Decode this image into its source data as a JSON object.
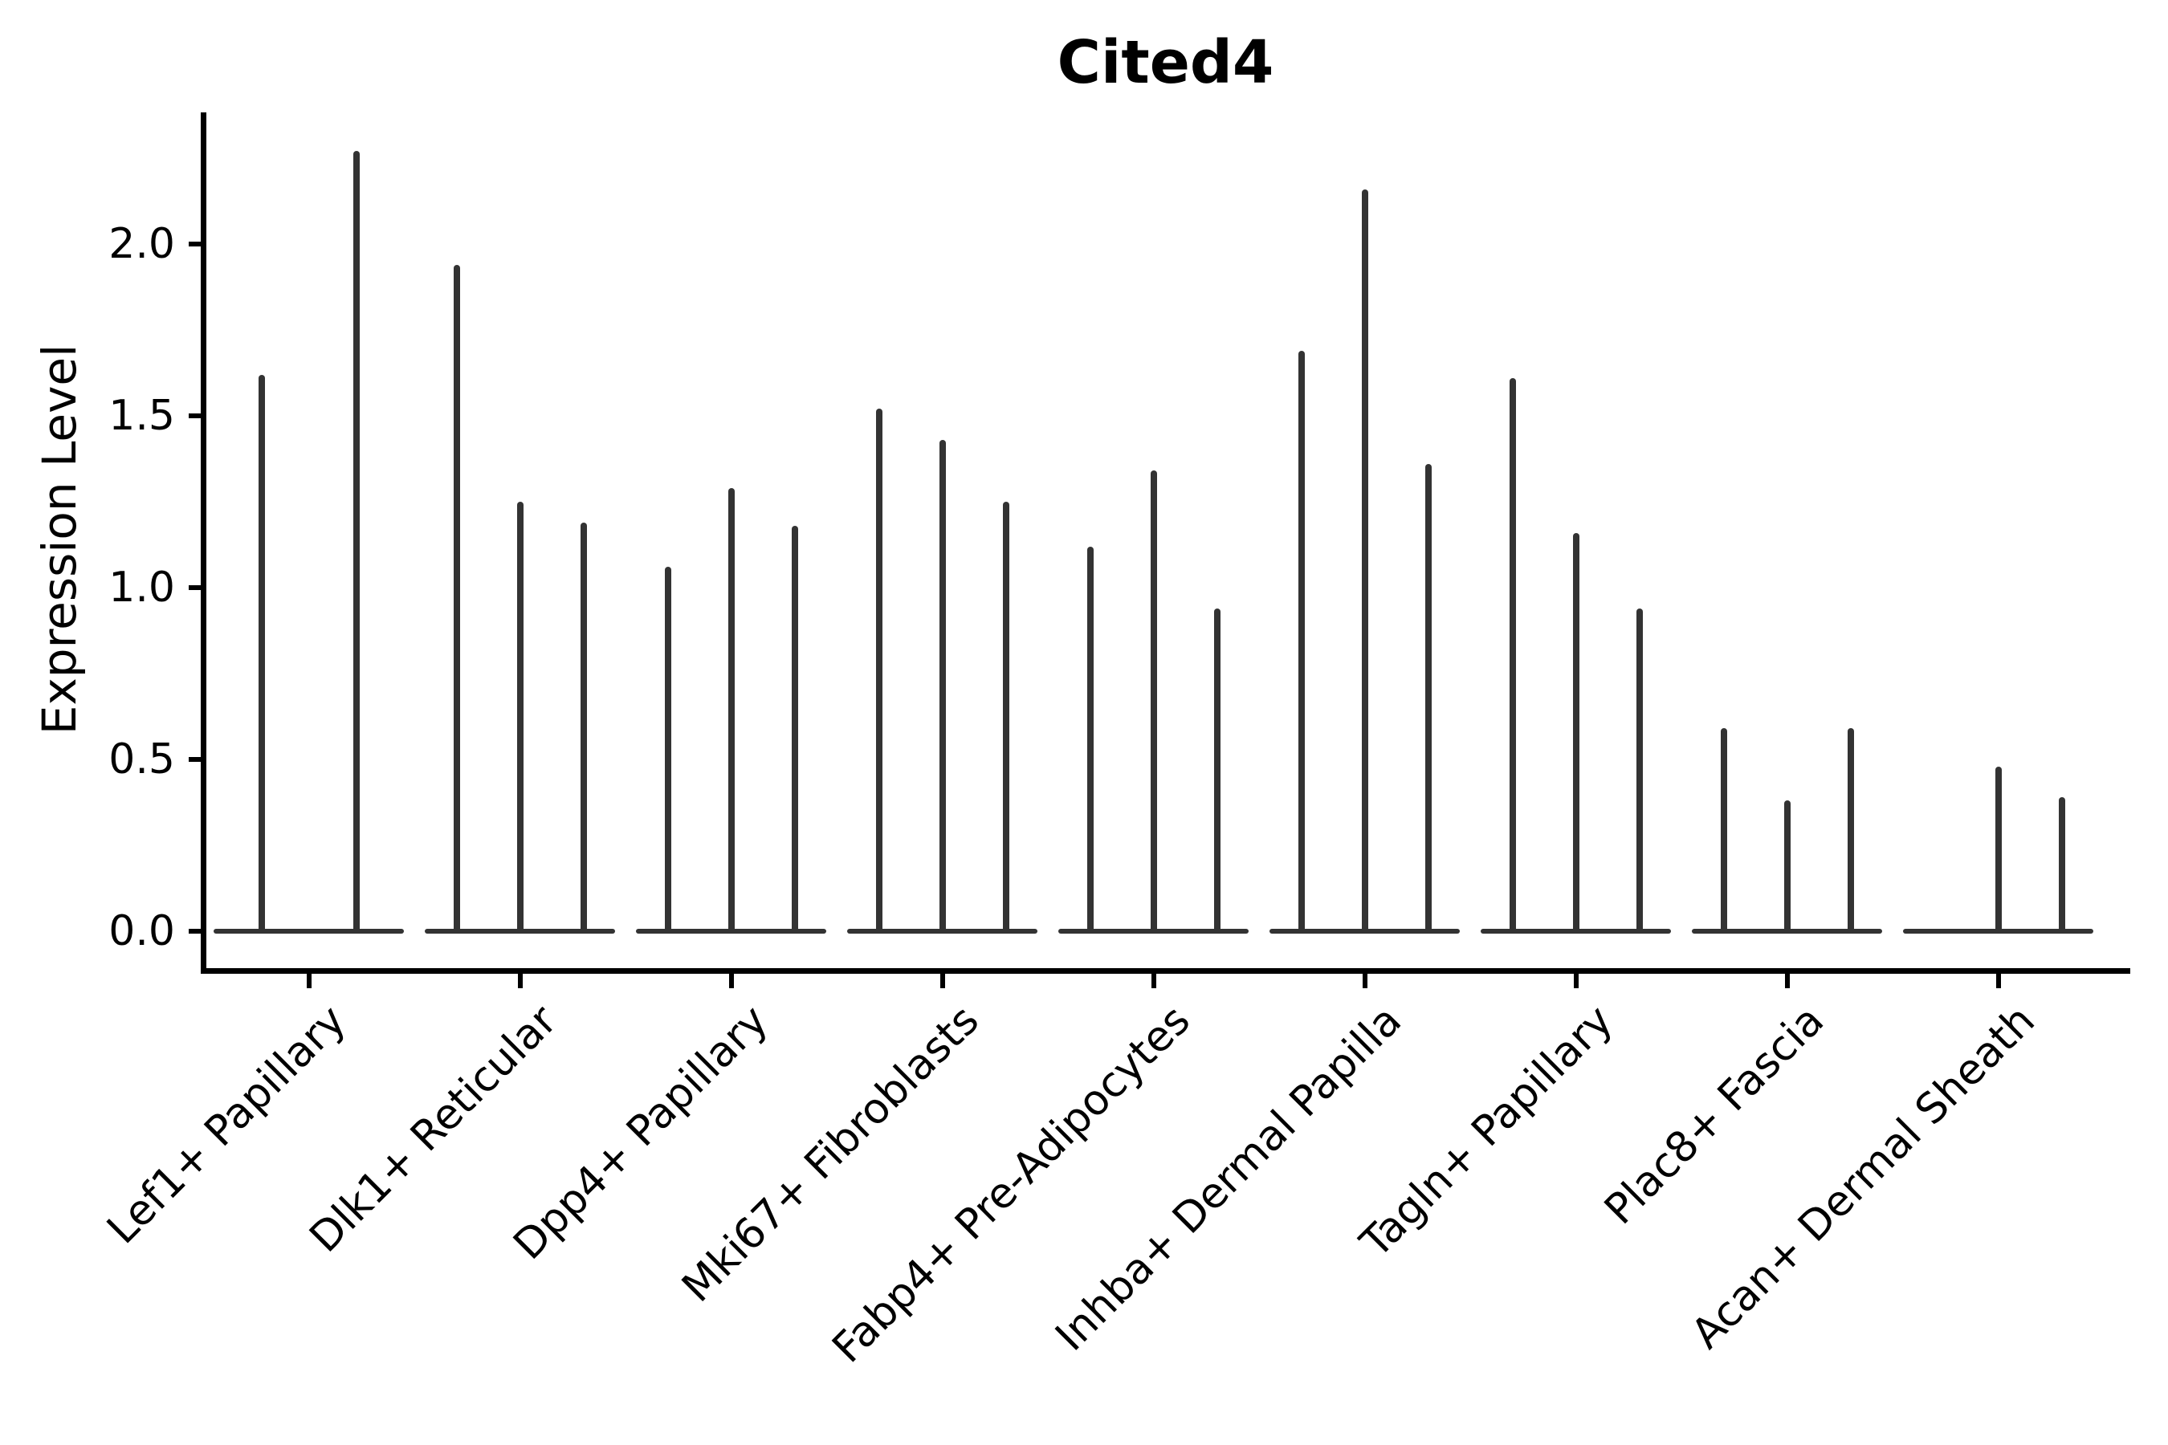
{
  "chart_data": {
    "type": "violin",
    "title": "Cited4",
    "ylabel": "Expression Level",
    "xlabel": "",
    "ylim": [
      0,
      2.35
    ],
    "yticks": [
      0.0,
      0.5,
      1.0,
      1.5,
      2.0
    ],
    "ytick_labels": [
      "0.0",
      "0.5",
      "1.0",
      "1.5",
      "2.0"
    ],
    "grid": false,
    "legend": "none",
    "style_note": "Seurat-style stacked violin plot; each cell-type group shows 2-3 very thin violins (spikes) with flat bases at expression 0",
    "categories": [
      "Lef1+ Papillary",
      "Dlk1+ Reticular",
      "Dpp4+ Papillary",
      "Mki67+ Fibroblasts",
      "Fabp4+ Pre-Adipocytes",
      "Inhba+ Dermal Papilla",
      "Tagln+ Papillary",
      "Plac8+ Fascia",
      "Acan+ Dermal Sheath"
    ],
    "series": [
      {
        "category": "Lef1+ Papillary",
        "violin_max_values": [
          1.62,
          2.27
        ]
      },
      {
        "category": "Dlk1+ Reticular",
        "violin_max_values": [
          1.94,
          1.25,
          1.19
        ]
      },
      {
        "category": "Dpp4+ Papillary",
        "violin_max_values": [
          1.06,
          1.29,
          1.18
        ]
      },
      {
        "category": "Mki67+ Fibroblasts",
        "violin_max_values": [
          1.52,
          1.43,
          1.25
        ]
      },
      {
        "category": "Fabp4+ Pre-Adipocytes",
        "violin_max_values": [
          1.12,
          1.34,
          0.94
        ]
      },
      {
        "category": "Inhba+ Dermal Papilla",
        "violin_max_values": [
          1.69,
          2.16,
          1.36
        ]
      },
      {
        "category": "Tagln+ Papillary",
        "violin_max_values": [
          1.61,
          1.16,
          0.94
        ]
      },
      {
        "category": "Plac8+ Fascia",
        "violin_max_values": [
          0.59,
          0.38,
          0.59
        ]
      },
      {
        "category": "Acan+ Dermal Sheath",
        "violin_max_values": [
          0,
          0.48,
          0.39
        ]
      }
    ],
    "colors": {
      "violin": "#333333",
      "axis": "#000000",
      "background": "#ffffff"
    }
  }
}
